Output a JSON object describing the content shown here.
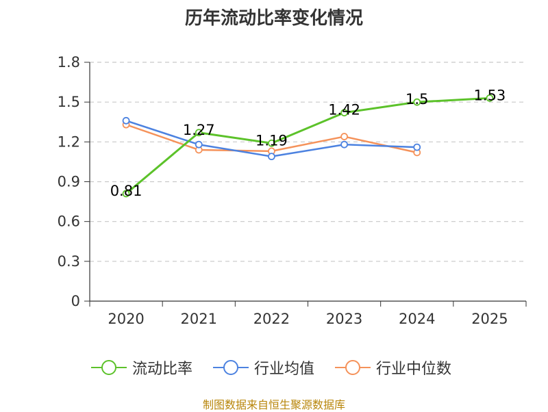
{
  "chart_data": {
    "type": "line",
    "title": "历年流动比率变化情况",
    "categories": [
      "2020",
      "2021",
      "2022",
      "2023",
      "2024",
      "2025"
    ],
    "ylim": [
      0,
      1.8
    ],
    "yticks": [
      "0",
      "0.3",
      "0.6",
      "0.9",
      "1.2",
      "1.5",
      "1.8"
    ],
    "ytick_values": [
      0,
      0.3,
      0.6,
      0.9,
      1.2,
      1.5,
      1.8
    ],
    "grid": true,
    "legend_position": "bottom",
    "series": [
      {
        "name": "流动比率",
        "color": "#5cc22a",
        "values": [
          0.81,
          1.27,
          1.19,
          1.42,
          1.5,
          1.53
        ],
        "labels": [
          "0.81",
          "1.27",
          "1.19",
          "1.42",
          "1.5",
          "1.53"
        ]
      },
      {
        "name": "行业均值",
        "color": "#4c82e0",
        "values": [
          1.36,
          1.18,
          1.09,
          1.18,
          1.16,
          null
        ]
      },
      {
        "name": "行业中位数",
        "color": "#f5925a",
        "values": [
          1.33,
          1.14,
          1.13,
          1.24,
          1.12,
          null
        ]
      }
    ]
  },
  "source": "制图数据来自恒生聚源数据库"
}
